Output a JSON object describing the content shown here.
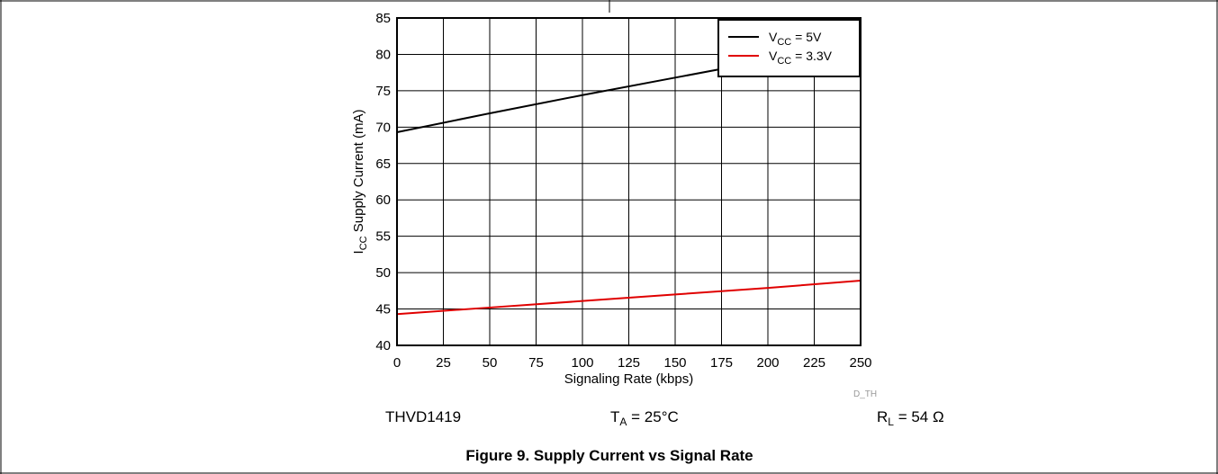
{
  "chart_data": {
    "type": "line",
    "xlabel": "Signaling Rate (kbps)",
    "ylabel": {
      "main": "I",
      "sub": "CC",
      "rest": " Supply Current (mA)"
    },
    "xlim": [
      0,
      250
    ],
    "ylim": [
      40,
      85
    ],
    "x_ticks": [
      0,
      25,
      50,
      75,
      100,
      125,
      150,
      175,
      200,
      225,
      250
    ],
    "y_ticks": [
      40,
      45,
      50,
      55,
      60,
      65,
      70,
      75,
      80,
      85
    ],
    "grid": true,
    "legend_position": "top-right",
    "series": [
      {
        "name": {
          "main": "V",
          "sub": "CC",
          "rest": " = 5V"
        },
        "color": "#000000",
        "x": [
          0,
          50,
          100,
          150,
          175
        ],
        "y": [
          69.3,
          71.9,
          74.4,
          76.8,
          78.0
        ]
      },
      {
        "name": {
          "main": "V",
          "sub": "CC",
          "rest": " = 3.3V"
        },
        "color": "#e00000",
        "x": [
          0,
          50,
          100,
          150,
          200,
          250
        ],
        "y": [
          44.3,
          45.2,
          46.1,
          47.0,
          47.9,
          48.9
        ]
      }
    ]
  },
  "watermark": "D_TH",
  "conditions": {
    "device": "THVD1419",
    "temp": {
      "main": "T",
      "sub": "A",
      "rest": " = 25°C"
    },
    "load": {
      "main": "R",
      "sub": "L",
      "rest": " = 54 Ω"
    }
  },
  "caption": "Figure 9. Supply Current vs Signal Rate"
}
